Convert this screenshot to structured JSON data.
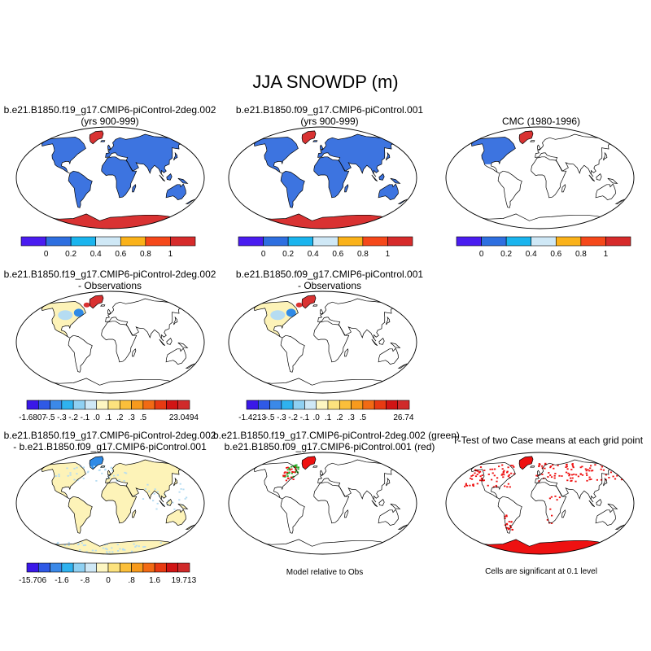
{
  "title": "JJA SNOWDP (m)",
  "panels": [
    {
      "line1": "b.e21.B1850.f19_g17.CMIP6-piControl-2deg.002",
      "line2": "(yrs 900-999)"
    },
    {
      "line1": "b.e21.B1850.f09_g17.CMIP6-piControl.001",
      "line2": "(yrs 900-999)"
    },
    {
      "line1": "CMC (1980-1996)",
      "line2": ""
    },
    {
      "line1": "b.e21.B1850.f19_g17.CMIP6-piControl-2deg.002",
      "line2": "- Observations"
    },
    {
      "line1": "b.e21.B1850.f09_g17.CMIP6-piControl.001",
      "line2": "- Observations"
    },
    {
      "line1": "b.e21.B1850.f19_g17.CMIP6-piControl-2deg.002",
      "line2": "- b.e21.B1850.f09_g17.CMIP6-piControl.001"
    },
    {
      "line1": "b.e21.B1850.f19_g17.CMIP6-piControl-2deg.002 (green)",
      "line2": "b.e21.B1850.f09_g17.CMIP6-piControl.001 (red)"
    },
    {
      "line1": "T-Test of two Case means at each grid point",
      "line2": ""
    }
  ],
  "notes": {
    "model_relative": "Model relative to Obs",
    "significance": "Cells are significant at 0.1 level"
  },
  "colorbars": {
    "absolute": {
      "colors": [
        "#4a1cf0",
        "#2e6fe0",
        "#1ab4ee",
        "#cfe8f6",
        "#fab21a",
        "#f5481a",
        "#d62b2b"
      ],
      "labels": [
        "0",
        "0.2",
        "0.4",
        "0.6",
        "0.8",
        "1"
      ]
    },
    "diff_obs_1": {
      "colors": [
        "#3a18e8",
        "#2f59e6",
        "#3b89e8",
        "#2fb2ef",
        "#8fd0f2",
        "#cfe8f6",
        "#fdf6c2",
        "#fce27e",
        "#fbbf3a",
        "#f79a1c",
        "#f26a14",
        "#e83a12",
        "#d11414",
        "#d02a2a"
      ],
      "labels": [
        "-1.6807",
        "-.5",
        "-.3",
        "-.2",
        "-.1",
        ".0",
        ".1",
        ".2",
        ".3",
        ".5",
        "23.0494"
      ]
    },
    "diff_obs_2": {
      "colors": [
        "#3a18e8",
        "#2f59e6",
        "#3b89e8",
        "#2fb2ef",
        "#8fd0f2",
        "#cfe8f6",
        "#fdf6c2",
        "#fce27e",
        "#fbbf3a",
        "#f79a1c",
        "#f26a14",
        "#e83a12",
        "#d11414",
        "#d02a2a"
      ],
      "labels": [
        "-1.4213",
        "-.5",
        "-.3",
        "-.2",
        "-.1",
        ".0",
        ".1",
        ".2",
        ".3",
        ".5",
        "26.74"
      ]
    },
    "diff_cases": {
      "colors": [
        "#3a18e8",
        "#2f59e6",
        "#3b89e8",
        "#2fb2ef",
        "#8fd0f2",
        "#cfe8f6",
        "#fdf6c2",
        "#fce27e",
        "#fbbf3a",
        "#f79a1c",
        "#f26a14",
        "#e83a12",
        "#d11414",
        "#d02a2a"
      ],
      "labels": [
        "-15.706",
        "-1.6",
        "-.8",
        "0",
        ".8",
        "1.6",
        "19.713"
      ]
    }
  },
  "map_colors": {
    "land_model": "#3d74e0",
    "antarctica": "#d93232",
    "greenland": "#d93232",
    "diff_land": "#fdf3b8",
    "diff_light_blue": "#b5dcf2",
    "diff_blue": "#2f8ae6",
    "sig_red": "#ee1111",
    "green": "#22aa22"
  },
  "chart_data": [
    {
      "type": "heatmap",
      "title": "b.e21.B1850.f19_g17.CMIP6-piControl-2deg.002 (yrs 900-999)",
      "colorbar_labels": [
        "0",
        "0.2",
        "0.4",
        "0.6",
        "0.8",
        "1"
      ]
    },
    {
      "type": "heatmap",
      "title": "b.e21.B1850.f09_g17.CMIP6-piControl.001 (yrs 900-999)",
      "colorbar_labels": [
        "0",
        "0.2",
        "0.4",
        "0.6",
        "0.8",
        "1"
      ]
    },
    {
      "type": "heatmap",
      "title": "CMC (1980-1996)",
      "colorbar_labels": [
        "0",
        "0.2",
        "0.4",
        "0.6",
        "0.8",
        "1"
      ]
    },
    {
      "type": "heatmap",
      "title": "b.e21.B1850.f19_g17.CMIP6-piControl-2deg.002 - Observations",
      "colorbar_labels": [
        "-1.6807",
        "-.5",
        "-.3",
        "-.2",
        "-.1",
        ".0",
        ".1",
        ".2",
        ".3",
        ".5",
        "23.0494"
      ]
    },
    {
      "type": "heatmap",
      "title": "b.e21.B1850.f09_g17.CMIP6-piControl.001 - Observations",
      "colorbar_labels": [
        "-1.4213",
        "-.5",
        "-.3",
        "-.2",
        "-.1",
        ".0",
        ".1",
        ".2",
        ".3",
        ".5",
        "26.74"
      ]
    },
    {
      "type": "heatmap",
      "title": "b.e21.B1850.f19_g17.CMIP6-piControl-2deg.002 - b.e21.B1850.f09_g17.CMIP6-piControl.001",
      "colorbar_labels": [
        "-15.706",
        "-1.6",
        "-.8",
        "0",
        ".8",
        "1.6",
        "19.713"
      ]
    },
    {
      "type": "heatmap",
      "title": "b.e21.B1850.f19_g17.CMIP6-piControl-2deg.002 (green) b.e21.B1850.f09_g17.CMIP6-piControl.001 (red)"
    },
    {
      "type": "heatmap",
      "title": "T-Test of two Case means at each grid point"
    }
  ]
}
